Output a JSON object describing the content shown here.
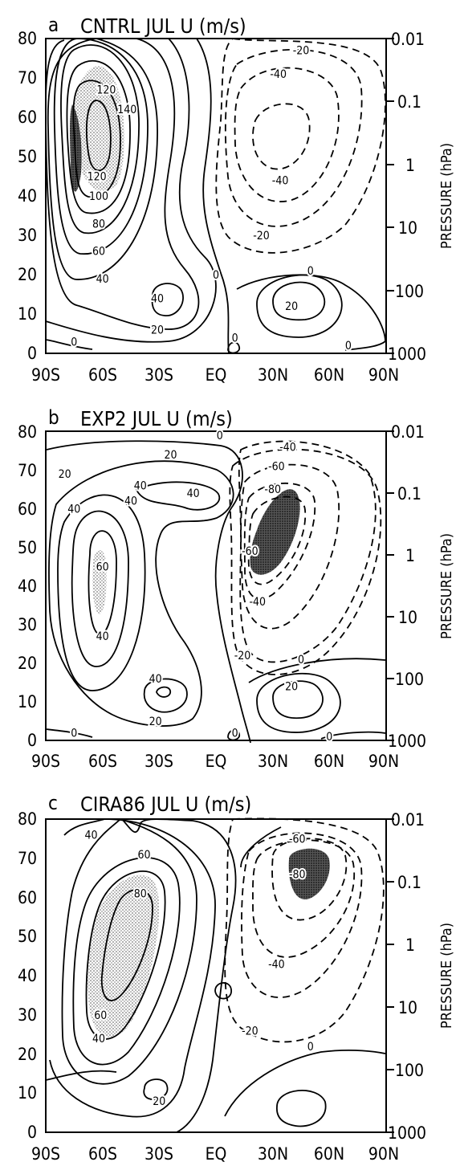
{
  "chart_data": [
    {
      "type": "contour",
      "panel": "a",
      "title": "CNTRL JUL U (m/s)",
      "x_ticks": [
        "90S",
        "60S",
        "30S",
        "EQ",
        "30N",
        "60N",
        "90N"
      ],
      "y_ticks": [
        "0",
        "10",
        "20",
        "30",
        "40",
        "50",
        "60",
        "70",
        "80"
      ],
      "ylim": [
        0,
        80
      ],
      "ylabel_right": "PRESSURE (hPa)",
      "pressure_ticks": [
        "0.01",
        "0.1",
        "1",
        "10",
        "100",
        "1000"
      ],
      "contour_interval": 20,
      "max_value": 140,
      "min_value": -40,
      "contour_labels": [
        {
          "lat": -47,
          "z": 62,
          "v": "140"
        },
        {
          "lat": -58,
          "z": 67,
          "v": "120"
        },
        {
          "lat": -63,
          "z": 45,
          "v": "120"
        },
        {
          "lat": -62,
          "z": 40,
          "v": "100"
        },
        {
          "lat": -62,
          "z": 33,
          "v": "80"
        },
        {
          "lat": -62,
          "z": 26,
          "v": "60"
        },
        {
          "lat": -60,
          "z": 19,
          "v": "40"
        },
        {
          "lat": -31,
          "z": 14,
          "v": "40"
        },
        {
          "lat": -31,
          "z": 6,
          "v": "20"
        },
        {
          "lat": 0,
          "z": 20,
          "v": "0"
        },
        {
          "lat": -75,
          "z": 3,
          "v": "0"
        },
        {
          "lat": 10,
          "z": 4,
          "v": "0"
        },
        {
          "lat": 50,
          "z": 21,
          "v": "0"
        },
        {
          "lat": 70,
          "z": 2,
          "v": "0"
        },
        {
          "lat": 40,
          "z": 12,
          "v": "20"
        },
        {
          "lat": 45,
          "z": 77,
          "v": "-20"
        },
        {
          "lat": 33,
          "z": 71,
          "v": "-40"
        },
        {
          "lat": 34,
          "z": 44,
          "v": "-40"
        },
        {
          "lat": 24,
          "z": 30,
          "v": "-20"
        }
      ]
    },
    {
      "type": "contour",
      "panel": "b",
      "title": "EXP2 JUL U (m/s)",
      "x_ticks": [
        "90S",
        "60S",
        "30S",
        "EQ",
        "30N",
        "60N",
        "90N"
      ],
      "y_ticks": [
        "0",
        "10",
        "20",
        "30",
        "40",
        "50",
        "60",
        "70",
        "80"
      ],
      "ylim": [
        0,
        80
      ],
      "ylabel_right": "PRESSURE (hPa)",
      "pressure_ticks": [
        "0.01",
        "0.1",
        "1",
        "10",
        "100",
        "1000"
      ],
      "contour_interval": 20,
      "max_value": 60,
      "min_value": -80,
      "contour_labels": [
        {
          "lat": 2,
          "z": 79,
          "v": "0"
        },
        {
          "lat": -24,
          "z": 74,
          "v": "20"
        },
        {
          "lat": -80,
          "z": 69,
          "v": "20"
        },
        {
          "lat": -75,
          "z": 60,
          "v": "40"
        },
        {
          "lat": -40,
          "z": 66,
          "v": "40"
        },
        {
          "lat": -45,
          "z": 62,
          "v": "40"
        },
        {
          "lat": -12,
          "z": 64,
          "v": "40"
        },
        {
          "lat": -60,
          "z": 45,
          "v": "60"
        },
        {
          "lat": -60,
          "z": 27,
          "v": "40"
        },
        {
          "lat": -32,
          "z": 16,
          "v": "40"
        },
        {
          "lat": -32,
          "z": 5,
          "v": "20"
        },
        {
          "lat": 38,
          "z": 76,
          "v": "-40"
        },
        {
          "lat": 32,
          "z": 71,
          "v": "-60"
        },
        {
          "lat": 30,
          "z": 65,
          "v": "-80"
        },
        {
          "lat": 18,
          "z": 49,
          "v": "-60"
        },
        {
          "lat": 22,
          "z": 36,
          "v": "-40"
        },
        {
          "lat": 14,
          "z": 22,
          "v": "-20"
        },
        {
          "lat": 45,
          "z": 21,
          "v": "0"
        },
        {
          "lat": 40,
          "z": 14,
          "v": "20"
        },
        {
          "lat": -75,
          "z": 2,
          "v": "0"
        },
        {
          "lat": 10,
          "z": 2,
          "v": "0"
        },
        {
          "lat": 60,
          "z": 1,
          "v": "0"
        }
      ]
    },
    {
      "type": "contour",
      "panel": "c",
      "title": "CIRA86 JUL U (m/s)",
      "x_ticks": [
        "90S",
        "60S",
        "30S",
        "EQ",
        "30N",
        "60N",
        "90N"
      ],
      "y_ticks": [
        "0",
        "10",
        "20",
        "30",
        "40",
        "50",
        "60",
        "70",
        "80"
      ],
      "ylim": [
        0,
        80
      ],
      "ylabel_right": "PRESSURE (hPa)",
      "pressure_ticks": [
        "0.01",
        "0.1",
        "1",
        "10",
        "100",
        "1000"
      ],
      "contour_interval": 20,
      "max_value": 80,
      "min_value": -80,
      "contour_labels": [
        {
          "lat": -66,
          "z": 76,
          "v": "40"
        },
        {
          "lat": -38,
          "z": 71,
          "v": "60"
        },
        {
          "lat": -40,
          "z": 61,
          "v": "80"
        },
        {
          "lat": -61,
          "z": 30,
          "v": "60"
        },
        {
          "lat": -62,
          "z": 24,
          "v": "40"
        },
        {
          "lat": -30,
          "z": 8,
          "v": "20"
        },
        {
          "lat": 43,
          "z": 75,
          "v": "-60"
        },
        {
          "lat": 43,
          "z": 66,
          "v": "-80"
        },
        {
          "lat": 32,
          "z": 43,
          "v": "-40"
        },
        {
          "lat": 18,
          "z": 26,
          "v": "-20"
        },
        {
          "lat": 50,
          "z": 22,
          "v": "0"
        }
      ]
    }
  ]
}
